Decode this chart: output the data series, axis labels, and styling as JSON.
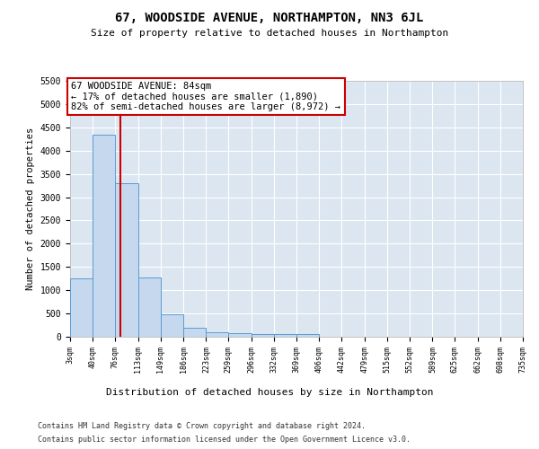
{
  "title": "67, WOODSIDE AVENUE, NORTHAMPTON, NN3 6JL",
  "subtitle": "Size of property relative to detached houses in Northampton",
  "xlabel": "Distribution of detached houses by size in Northampton",
  "ylabel": "Number of detached properties",
  "footnote1": "Contains HM Land Registry data © Crown copyright and database right 2024.",
  "footnote2": "Contains public sector information licensed under the Open Government Licence v3.0.",
  "property_size": 84,
  "annotation_line1": "67 WOODSIDE AVENUE: 84sqm",
  "annotation_line2": "← 17% of detached houses are smaller (1,890)",
  "annotation_line3": "82% of semi-detached houses are larger (8,972) →",
  "bar_color": "#c5d8ed",
  "bar_edge_color": "#5b9bd5",
  "vline_color": "#cc0000",
  "annotation_box_edgecolor": "#cc0000",
  "plot_bg_color": "#dce6f1",
  "bin_edges": [
    3,
    40,
    76,
    113,
    149,
    186,
    223,
    259,
    296,
    332,
    369,
    406,
    442,
    479,
    515,
    552,
    589,
    625,
    662,
    698,
    735
  ],
  "bar_heights": [
    1250,
    4350,
    3300,
    1270,
    480,
    200,
    100,
    80,
    60,
    50,
    50,
    0,
    0,
    0,
    0,
    0,
    0,
    0,
    0,
    0
  ],
  "ylim": [
    0,
    5500
  ],
  "yticks": [
    0,
    500,
    1000,
    1500,
    2000,
    2500,
    3000,
    3500,
    4000,
    4500,
    5000,
    5500
  ]
}
